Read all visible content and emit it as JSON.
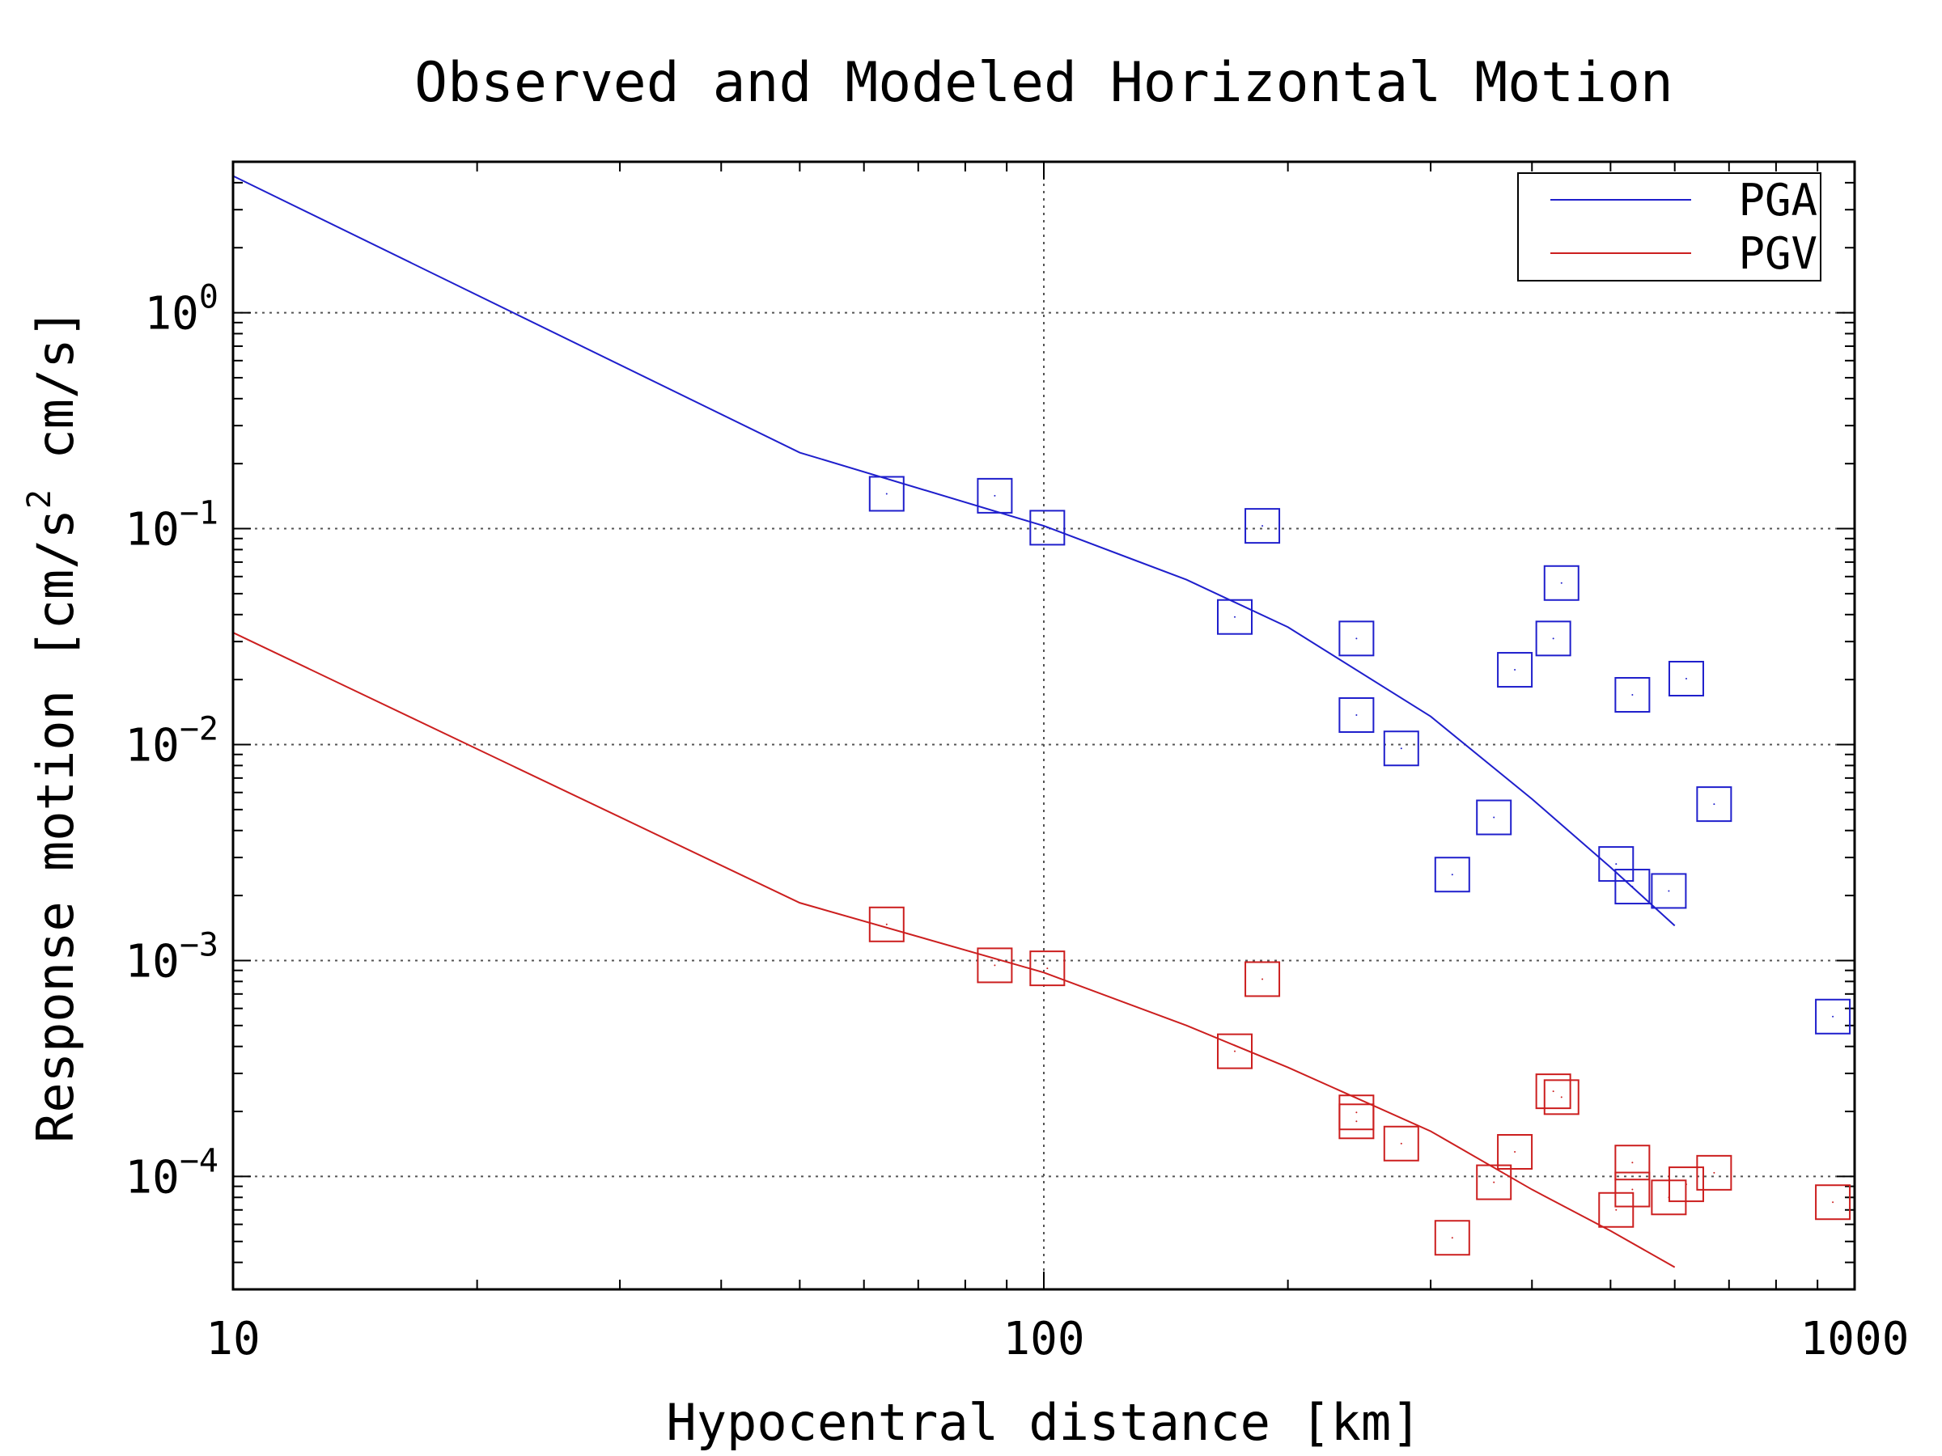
{
  "chart_data": {
    "type": "scatter",
    "title": "Observed and Modeled Horizontal Motion",
    "xlabel": "Hypocentral distance [km]",
    "ylabel_parts": {
      "pre": "Response motion  [cm/s",
      "sup": "2",
      "post": "  cm/s]"
    },
    "x_scale": "log",
    "y_scale": "log",
    "xlim": [
      10,
      1000
    ],
    "ylim": [
      3e-05,
      5
    ],
    "x_ticks": [
      {
        "value": 10,
        "label": "10"
      },
      {
        "value": 100,
        "label": "100"
      },
      {
        "value": 1000,
        "label": "1000"
      }
    ],
    "y_ticks": [
      {
        "value": 1,
        "base": "10",
        "exp": "0"
      },
      {
        "value": 0.1,
        "base": "10",
        "exp": "−1"
      },
      {
        "value": 0.01,
        "base": "10",
        "exp": "−2"
      },
      {
        "value": 0.001,
        "base": "10",
        "exp": "−3"
      },
      {
        "value": 0.0001,
        "base": "10",
        "exp": "−4"
      }
    ],
    "grid": true,
    "legend_position": "top-right",
    "series": [
      {
        "name": "PGA",
        "color": "#1f1fcc",
        "model_line": [
          [
            10,
            4.3
          ],
          [
            50,
            0.225
          ],
          [
            100,
            0.103
          ],
          [
            150,
            0.058
          ],
          [
            200,
            0.035
          ],
          [
            300,
            0.0135
          ],
          [
            400,
            0.0056
          ],
          [
            500,
            0.0027
          ],
          [
            600,
            0.00145
          ]
        ],
        "observed": [
          [
            64,
            0.145
          ],
          [
            87,
            0.142
          ],
          [
            101,
            0.101
          ],
          [
            172,
            0.039
          ],
          [
            186,
            0.103
          ],
          [
            243,
            0.031
          ],
          [
            243,
            0.0137
          ],
          [
            276,
            0.0096
          ],
          [
            319,
            0.0025
          ],
          [
            359,
            0.0046
          ],
          [
            381,
            0.0222
          ],
          [
            425,
            0.031
          ],
          [
            435,
            0.056
          ],
          [
            508,
            0.0028
          ],
          [
            532,
            0.0022
          ],
          [
            532,
            0.017
          ],
          [
            590,
            0.0021
          ],
          [
            620,
            0.0202
          ],
          [
            671,
            0.0053
          ],
          [
            940,
            0.00055
          ]
        ]
      },
      {
        "name": "PGV",
        "color": "#cc1f1f",
        "model_line": [
          [
            10,
            0.033
          ],
          [
            50,
            0.00185
          ],
          [
            100,
            0.00088
          ],
          [
            150,
            0.0005
          ],
          [
            200,
            0.00032
          ],
          [
            300,
            0.000162
          ],
          [
            400,
            8.7e-05
          ],
          [
            500,
            5.6e-05
          ],
          [
            600,
            3.8e-05
          ]
        ],
        "observed": [
          [
            64,
            0.00147
          ],
          [
            87,
            0.00095
          ],
          [
            101,
            0.00092
          ],
          [
            172,
            0.00038
          ],
          [
            186,
            0.00082
          ],
          [
            243,
            0.00018
          ],
          [
            243,
            0.000198
          ],
          [
            276,
            0.000142
          ],
          [
            319,
            5.2e-05
          ],
          [
            359,
            9.4e-05
          ],
          [
            381,
            0.00013
          ],
          [
            425,
            0.000248
          ],
          [
            435,
            0.000233
          ],
          [
            508,
            7e-05
          ],
          [
            532,
            0.000116
          ],
          [
            532,
            8.7e-05
          ],
          [
            590,
            8e-05
          ],
          [
            620,
            9.2e-05
          ],
          [
            671,
            0.000104
          ],
          [
            940,
            7.6e-05
          ]
        ]
      }
    ]
  }
}
